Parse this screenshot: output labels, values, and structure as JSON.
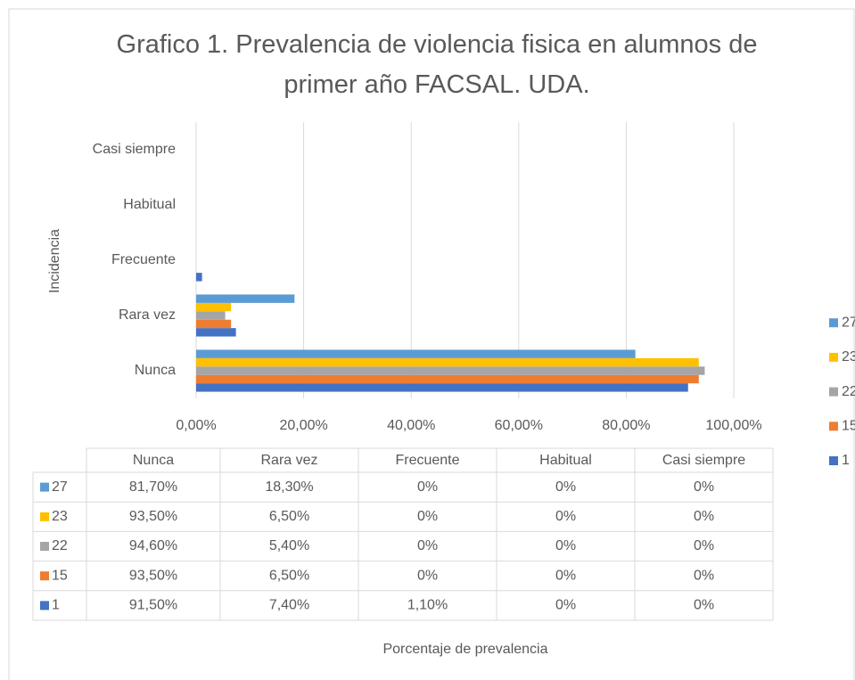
{
  "chart_data": {
    "type": "bar",
    "orientation": "horizontal",
    "title": "Grafico 1. Prevalencia de violencia fisica en alumnos de primer año FACSAL. UDA.",
    "xlabel": "Porcentaje de prevalencia",
    "ylabel": "Incidencia",
    "categories": [
      "Nunca",
      "Rara vez",
      "Frecuente",
      "Habitual",
      "Casi siempre"
    ],
    "series": [
      {
        "name": "1",
        "color": "#4472c4",
        "values": [
          91.5,
          7.4,
          1.1,
          0,
          0
        ],
        "value_labels": [
          "91,50%",
          "7,40%",
          "1,10%",
          "0%",
          "0%"
        ]
      },
      {
        "name": "15",
        "color": "#ed7d31",
        "values": [
          93.5,
          6.5,
          0,
          0,
          0
        ],
        "value_labels": [
          "93,50%",
          "6,50%",
          "0%",
          "0%",
          "0%"
        ]
      },
      {
        "name": "22",
        "color": "#a5a5a5",
        "values": [
          94.6,
          5.4,
          0,
          0,
          0
        ],
        "value_labels": [
          "94,60%",
          "5,40%",
          "0%",
          "0%",
          "0%"
        ]
      },
      {
        "name": "23",
        "color": "#ffc000",
        "values": [
          93.5,
          6.5,
          0,
          0,
          0
        ],
        "value_labels": [
          "93,50%",
          "6,50%",
          "0%",
          "0%",
          "0%"
        ]
      },
      {
        "name": "27",
        "color": "#5b9bd5",
        "values": [
          81.7,
          18.3,
          0,
          0,
          0
        ],
        "value_labels": [
          "81,70%",
          "18,30%",
          "0%",
          "0%",
          "0%"
        ]
      }
    ],
    "xlim": [
      0,
      100
    ],
    "xticks": [
      {
        "value": 0,
        "label": "0,00%"
      },
      {
        "value": 20,
        "label": "20,00%"
      },
      {
        "value": 40,
        "label": "40,00%"
      },
      {
        "value": 60,
        "label": "60,00%"
      },
      {
        "value": 80,
        "label": "80,00%"
      },
      {
        "value": 100,
        "label": "100,00%"
      }
    ],
    "grid": true,
    "legend": "right"
  }
}
